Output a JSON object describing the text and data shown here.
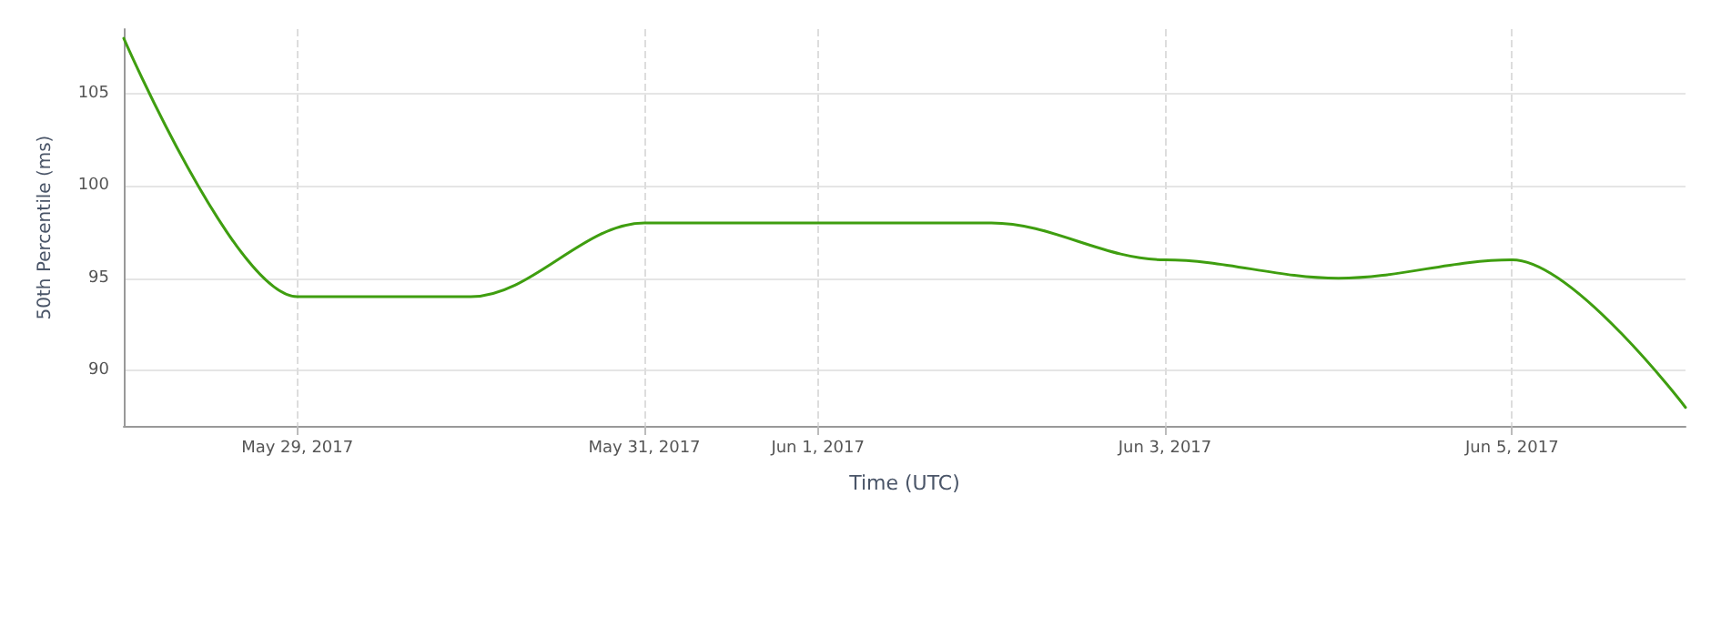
{
  "chart_data": {
    "type": "line",
    "xlabel": "Time (UTC)",
    "ylabel": "50th Percentile (ms)",
    "x": [
      "2017-05-28",
      "2017-05-29",
      "2017-05-30",
      "2017-05-31",
      "2017-06-01",
      "2017-06-02",
      "2017-06-03",
      "2017-06-04",
      "2017-06-05",
      "2017-06-06"
    ],
    "series": [
      {
        "color": "#3f9e10",
        "values": [
          108,
          94,
          94,
          98,
          98,
          98,
          96,
          95,
          96,
          88
        ]
      }
    ],
    "xlim": [
      "2017-05-28",
      "2017-06-06"
    ],
    "xticks": [
      {
        "value": "2017-05-29",
        "label": "May 29, 2017"
      },
      {
        "value": "2017-05-31",
        "label": "May 31, 2017"
      },
      {
        "value": "2017-06-01",
        "label": "Jun 1, 2017"
      },
      {
        "value": "2017-06-03",
        "label": "Jun 3, 2017"
      },
      {
        "value": "2017-06-05",
        "label": "Jun 5, 2017"
      }
    ],
    "ylim": [
      87,
      108.5
    ],
    "yticks": [
      90,
      95,
      100,
      105
    ],
    "grid": true,
    "marker": "none",
    "line_style": "solid"
  }
}
